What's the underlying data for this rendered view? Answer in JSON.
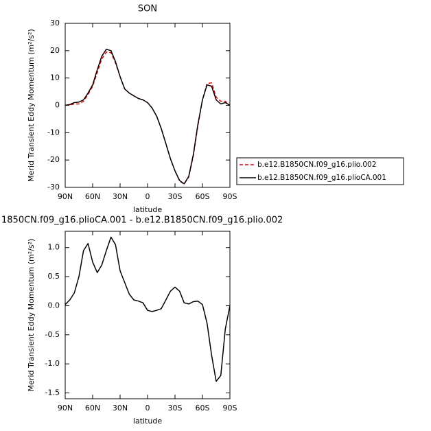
{
  "chart_data": [
    {
      "type": "line",
      "title": "SON",
      "xlabel": "latitude",
      "ylabel": "Merid Transient Eddy Momentum (m²/s²)",
      "x": [
        90,
        85,
        80,
        75,
        70,
        65,
        60,
        55,
        50,
        45,
        40,
        35,
        30,
        25,
        20,
        15,
        10,
        5,
        0,
        -5,
        -10,
        -15,
        -20,
        -25,
        -30,
        -35,
        -40,
        -45,
        -50,
        -55,
        -60,
        -65,
        -70,
        -75,
        -80,
        -85,
        -90
      ],
      "xlim": [
        90,
        -90
      ],
      "xticks": [
        {
          "value": 90,
          "label": "90N"
        },
        {
          "value": 60,
          "label": "60N"
        },
        {
          "value": 30,
          "label": "30N"
        },
        0,
        {
          "value": -30,
          "label": "30S"
        },
        {
          "value": -60,
          "label": "60S"
        },
        {
          "value": -90,
          "label": "90S"
        }
      ],
      "ylim": [
        -30,
        30
      ],
      "yticks": [
        -30,
        -20,
        -10,
        0,
        10,
        20,
        30
      ],
      "legend": "right",
      "series": [
        {
          "name": "b.e12.B1850CN.f09_g16.plio.002",
          "color": "#dd0000",
          "line_style": "dashed",
          "values": [
            0,
            0.2,
            0.5,
            0.5,
            1.5,
            4,
            7,
            12,
            17,
            19.5,
            19.3,
            15.5,
            10.5,
            6,
            4.5,
            3.5,
            2.5,
            2,
            1,
            -1,
            -4,
            -8.5,
            -14,
            -19.5,
            -24,
            -27.7,
            -28.8,
            -26.2,
            -18.5,
            -7.5,
            2,
            8,
            8.2,
            3,
            1.5,
            1.5,
            0
          ]
        },
        {
          "name": "b.e12.B1850CN.f09_g16.plioCA.001",
          "color": "#000000",
          "line_style": "solid",
          "values": [
            0,
            0.3,
            1,
            1.2,
            2,
            4.5,
            7.5,
            13,
            18,
            20.5,
            20,
            16,
            10.5,
            6,
            4.5,
            3.5,
            2.5,
            2,
            1,
            -1,
            -4,
            -8.5,
            -14,
            -19.5,
            -24,
            -27.5,
            -28.7,
            -26,
            -18,
            -7,
            2,
            7.5,
            7,
            2,
            0.5,
            1,
            0
          ]
        }
      ]
    },
    {
      "type": "line",
      "title": "1850CN.f09_g16.plioCA.001 - b.e12.B1850CN.f09_g16.plio.002",
      "xlabel": "latitude",
      "ylabel": "Merid Transient Eddy Momentum (m²/s²)",
      "x": [
        90,
        85,
        80,
        75,
        70,
        65,
        60,
        55,
        50,
        45,
        40,
        35,
        30,
        25,
        20,
        15,
        10,
        5,
        0,
        -5,
        -10,
        -15,
        -20,
        -25,
        -30,
        -35,
        -40,
        -45,
        -50,
        -55,
        -60,
        -65,
        -70,
        -75,
        -80,
        -85,
        -90
      ],
      "xlim": [
        90,
        -90
      ],
      "xticks": [
        {
          "value": 90,
          "label": "90N"
        },
        {
          "value": 60,
          "label": "60N"
        },
        {
          "value": 30,
          "label": "30N"
        },
        0,
        {
          "value": -30,
          "label": "30S"
        },
        {
          "value": -60,
          "label": "60S"
        },
        {
          "value": -90,
          "label": "90S"
        }
      ],
      "ylim": [
        -1.6,
        1.28
      ],
      "yticks": [
        -1.5,
        {
          "value": -1,
          "label": "-1.0"
        },
        -0.5,
        {
          "value": 0,
          "label": "0.0"
        },
        0.5,
        {
          "value": 1,
          "label": "1.0"
        }
      ],
      "series": [
        {
          "color": "#000000",
          "line_style": "solid",
          "values": [
            0.02,
            0.1,
            0.22,
            0.5,
            0.95,
            1.07,
            0.75,
            0.57,
            0.7,
            0.95,
            1.18,
            1.05,
            0.6,
            0.4,
            0.2,
            0.1,
            0.08,
            0.05,
            -0.08,
            -0.1,
            -0.08,
            -0.05,
            0.1,
            0.25,
            0.32,
            0.25,
            0.05,
            0.03,
            0.07,
            0.08,
            0.02,
            -0.3,
            -0.85,
            -1.3,
            -1.2,
            -0.4,
            0
          ]
        }
      ]
    }
  ]
}
